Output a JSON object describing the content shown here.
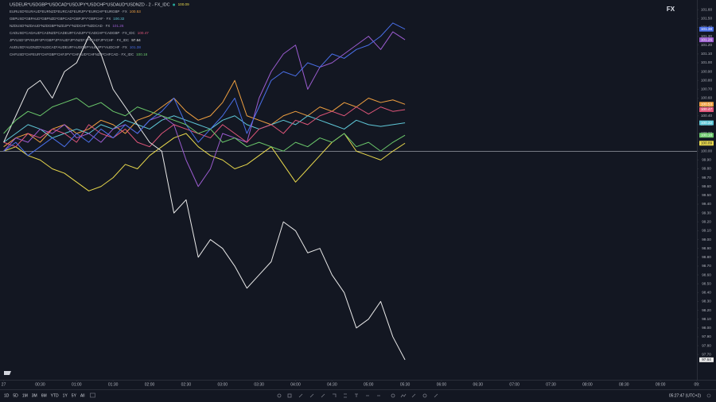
{
  "chart_data": {
    "type": "line",
    "annotation": "FX",
    "x": [
      0,
      10,
      20,
      30,
      40,
      50,
      60,
      70,
      80,
      90,
      100,
      110,
      120,
      130,
      140,
      150,
      160,
      170,
      180,
      190,
      200,
      210,
      220,
      230,
      240,
      250,
      260,
      270,
      280,
      290,
      300,
      310,
      320,
      330
    ],
    "xlim": [
      -3,
      570
    ],
    "xticks": [
      {
        "value": 0,
        "label": "27"
      },
      {
        "value": 30,
        "label": "00:30"
      },
      {
        "value": 60,
        "label": "01:00"
      },
      {
        "value": 90,
        "label": "01:30"
      },
      {
        "value": 120,
        "label": "02:00"
      },
      {
        "value": 150,
        "label": "02:30"
      },
      {
        "value": 180,
        "label": "03:00"
      },
      {
        "value": 210,
        "label": "03:30"
      },
      {
        "value": 240,
        "label": "04:00"
      },
      {
        "value": 270,
        "label": "04:30"
      },
      {
        "value": 300,
        "label": "05:00"
      },
      {
        "value": 330,
        "label": "05:30"
      },
      {
        "value": 360,
        "label": "06:00"
      },
      {
        "value": 390,
        "label": "06:30"
      },
      {
        "value": 420,
        "label": "07:00"
      },
      {
        "value": 450,
        "label": "07:30"
      },
      {
        "value": 480,
        "label": "08:00"
      },
      {
        "value": 510,
        "label": "08:30"
      },
      {
        "value": 540,
        "label": "09:00"
      },
      {
        "value": 570,
        "label": "09:"
      }
    ],
    "ylim": [
      97.45,
      101.71
    ],
    "yticks": [
      {
        "value": 97.7,
        "label": "97.70"
      },
      {
        "value": 97.8,
        "label": "97.80"
      },
      {
        "value": 97.9,
        "label": "97.90"
      },
      {
        "value": 98.0,
        "label": "98.00"
      },
      {
        "value": 98.1,
        "label": "98.10"
      },
      {
        "value": 98.2,
        "label": "98.20"
      },
      {
        "value": 98.3,
        "label": "98.30"
      },
      {
        "value": 98.4,
        "label": "98.40"
      },
      {
        "value": 98.5,
        "label": "98.50"
      },
      {
        "value": 98.6,
        "label": "98.60"
      },
      {
        "value": 98.7,
        "label": "98.70"
      },
      {
        "value": 98.8,
        "label": "98.80"
      },
      {
        "value": 98.9,
        "label": "98.90"
      },
      {
        "value": 99.0,
        "label": "99.00"
      },
      {
        "value": 99.1,
        "label": "99.10"
      },
      {
        "value": 99.2,
        "label": "99.20"
      },
      {
        "value": 99.3,
        "label": "99.30"
      },
      {
        "value": 99.4,
        "label": "99.40"
      },
      {
        "value": 99.5,
        "label": "99.50"
      },
      {
        "value": 99.6,
        "label": "99.60"
      },
      {
        "value": 99.7,
        "label": "99.70"
      },
      {
        "value": 99.8,
        "label": "99.80"
      },
      {
        "value": 99.9,
        "label": "99.90"
      },
      {
        "value": 100.0,
        "label": "100.00"
      },
      {
        "value": 100.1,
        "label": "100.10"
      },
      {
        "value": 100.2,
        "label": "100.20"
      },
      {
        "value": 100.3,
        "label": "100.30"
      },
      {
        "value": 100.4,
        "label": "100.40"
      },
      {
        "value": 100.5,
        "label": "100.50"
      },
      {
        "value": 100.6,
        "label": "100.60"
      },
      {
        "value": 100.7,
        "label": "100.70"
      },
      {
        "value": 100.8,
        "label": "100.80"
      },
      {
        "value": 100.9,
        "label": "100.90"
      },
      {
        "value": 101.0,
        "label": "101.00"
      },
      {
        "value": 101.1,
        "label": "101.10"
      },
      {
        "value": 101.2,
        "label": "101.20"
      },
      {
        "value": 101.3,
        "label": "101.30"
      },
      {
        "value": 101.4,
        "label": "101.40"
      },
      {
        "value": 101.5,
        "label": "101.50"
      },
      {
        "value": 101.6,
        "label": "101.60"
      }
    ],
    "hline": 100,
    "grid": false,
    "series": [
      {
        "name": "USDEUR*USDGBP*USDCAD*USDJPY*USDCHF*USDAUD*USDNZD - 2 - FX_IDC",
        "color": "#e8d84c",
        "values": [
          100.0,
          100.05,
          99.95,
          99.9,
          99.8,
          99.75,
          99.65,
          99.55,
          99.6,
          99.7,
          99.85,
          99.8,
          99.95,
          100.05,
          100.15,
          100.2,
          100.05,
          99.95,
          99.9,
          99.8,
          99.85,
          99.95,
          100.05,
          99.85,
          99.65,
          99.8,
          99.95,
          100.1,
          100.2,
          100.0,
          99.95,
          99.9,
          100.0,
          100.09
        ]
      },
      {
        "name": "EURUSD*EURAUD*EURNZD*EURCAD*EURJPY*EURCHF*EURGBP · FX",
        "color": "#f0a040",
        "values": [
          100.05,
          100.15,
          100.2,
          100.1,
          100.25,
          100.3,
          100.2,
          100.25,
          100.35,
          100.3,
          100.2,
          100.35,
          100.4,
          100.5,
          100.6,
          100.45,
          100.35,
          100.4,
          100.55,
          100.8,
          100.4,
          100.35,
          100.3,
          100.4,
          100.45,
          100.4,
          100.5,
          100.45,
          100.55,
          100.5,
          100.6,
          100.55,
          100.58,
          100.53
        ]
      },
      {
        "name": "GBPUSD*GBPAUD*GBPNZD*GBPCAD*GBPJPY*GBPCHF · FX",
        "color": "#5fc8d8",
        "values": [
          100.1,
          100.2,
          100.3,
          100.25,
          100.15,
          100.2,
          100.25,
          100.2,
          100.3,
          100.25,
          100.35,
          100.3,
          100.25,
          100.35,
          100.4,
          100.35,
          100.3,
          100.25,
          100.35,
          100.4,
          100.3,
          100.25,
          100.3,
          100.35,
          100.3,
          100.4,
          100.35,
          100.3,
          100.25,
          100.35,
          100.3,
          100.28,
          100.3,
          100.32
        ]
      },
      {
        "name": "NZDUSD*NZDAUD*NZDGBP*NZDJPY*NZDCHF*NZDCAD · FX",
        "color": "#9b5cd0",
        "values": [
          100.0,
          100.15,
          100.1,
          100.25,
          100.2,
          100.3,
          100.15,
          100.2,
          100.1,
          100.25,
          100.3,
          100.2,
          100.35,
          100.4,
          100.3,
          99.9,
          99.6,
          99.8,
          100.2,
          100.15,
          100.1,
          100.6,
          100.9,
          101.1,
          101.2,
          100.7,
          100.95,
          101.0,
          101.1,
          101.2,
          101.3,
          101.15,
          101.35,
          101.26
        ]
      },
      {
        "name": "CADUSD*CADAUD*CADNZD*CADEUR*CADJPY*CADCHF*CADGBP · FX_IDC",
        "color": "#e0567a",
        "values": [
          100.1,
          100.05,
          100.2,
          100.15,
          100.25,
          100.2,
          100.1,
          100.3,
          100.2,
          100.15,
          100.25,
          100.1,
          100.05,
          100.2,
          100.3,
          100.25,
          100.2,
          100.15,
          100.3,
          100.2,
          100.1,
          100.25,
          100.3,
          100.2,
          100.35,
          100.3,
          100.4,
          100.45,
          100.4,
          100.5,
          100.42,
          100.5,
          100.45,
          100.47
        ]
      },
      {
        "name": "JPYUSD*JPYEUR*JPYGBP*JPYAUD*JPYNZD*JPYCAD*JPYCHF · FX_IDC",
        "color": "#e8e8e8",
        "values": [
          100.1,
          100.4,
          100.7,
          100.8,
          100.6,
          100.9,
          101.0,
          101.3,
          101.1,
          100.7,
          100.5,
          100.3,
          100.1,
          100.0,
          99.3,
          99.45,
          98.8,
          99.0,
          98.9,
          98.7,
          98.45,
          98.6,
          98.75,
          99.2,
          99.1,
          98.85,
          98.9,
          98.6,
          98.4,
          98.0,
          98.1,
          98.3,
          97.9,
          97.64
        ]
      },
      {
        "name": "AUDUSD*AUDNZD*AUDCAD*AUDEUR*AUDGBP*AUDJPY*AUDCHF · FX",
        "color": "#4a6fe8",
        "values": [
          100.0,
          100.1,
          99.95,
          100.05,
          100.15,
          100.05,
          100.2,
          100.1,
          100.25,
          100.15,
          100.3,
          100.2,
          100.35,
          100.45,
          100.6,
          100.3,
          100.1,
          100.25,
          100.4,
          100.6,
          100.2,
          100.5,
          100.8,
          100.9,
          100.85,
          101.0,
          100.95,
          101.1,
          101.05,
          101.15,
          101.2,
          101.3,
          101.45,
          101.38
        ]
      },
      {
        "name": "CHFUSD*CHFEUR*CHFGBP*CHFJPY*CHFAUD*CHFNZD*CHFCAD · FX_IDC",
        "color": "#6bc86b",
        "values": [
          100.2,
          100.35,
          100.45,
          100.4,
          100.5,
          100.55,
          100.6,
          100.5,
          100.55,
          100.45,
          100.4,
          100.5,
          100.45,
          100.4,
          100.35,
          100.3,
          100.2,
          100.25,
          100.1,
          100.15,
          100.05,
          100.1,
          100.05,
          100.0,
          100.1,
          100.05,
          100.15,
          100.1,
          100.2,
          100.05,
          100.1,
          100.0,
          100.1,
          100.18
        ]
      }
    ]
  },
  "ui": {
    "toolbar": [
      "1D",
      "5D",
      "1M",
      "3M",
      "6M",
      "YTD",
      "1Y",
      "5Y",
      "All"
    ],
    "clock": "05:27:47 (UTC+2)"
  }
}
